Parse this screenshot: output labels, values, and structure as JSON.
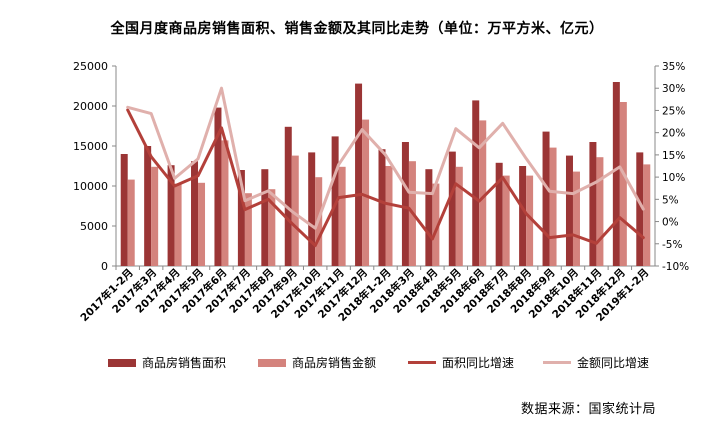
{
  "chart_data": {
    "type": "bar+line",
    "title": "全国月度商品房销售面积、销售金额及其同比走势（单位：万平方米、亿元）",
    "categories": [
      "2017年1-2月",
      "2017年3月",
      "2017年4月",
      "2017年5月",
      "2017年6月",
      "2017年7月",
      "2017年8月",
      "2017年9月",
      "2017年10月",
      "2017年11月",
      "2017年12月",
      "2018年1-2月",
      "2018年3月",
      "2018年4月",
      "2018年5月",
      "2018年6月",
      "2018年7月",
      "2018年8月",
      "2018年9月",
      "2018年10月",
      "2018年11月",
      "2018年12月",
      "2019年1-2月"
    ],
    "left_axis": {
      "min": 0,
      "max": 25000,
      "ticks": [
        "0",
        "5000",
        "10000",
        "15000",
        "20000",
        "25000"
      ]
    },
    "right_axis": {
      "min": -10,
      "max": 35,
      "ticks": [
        "-10%",
        "-5%",
        "0%",
        "5%",
        "10%",
        "15%",
        "20%",
        "25%",
        "30%",
        "35%"
      ]
    },
    "series": [
      {
        "name": "商品房销售面积",
        "kind": "bar",
        "axis": "left",
        "color": "#9b3535",
        "values": [
          14000,
          15000,
          12600,
          13100,
          19800,
          12000,
          12100,
          17400,
          14200,
          16200,
          22800,
          14600,
          15500,
          12100,
          14300,
          20700,
          12900,
          12500,
          16800,
          13800,
          15500,
          23000,
          14200
        ]
      },
      {
        "name": "商品房销售金额",
        "kind": "bar",
        "axis": "left",
        "color": "#d4837d",
        "values": [
          10800,
          12400,
          10300,
          10400,
          15700,
          9100,
          9600,
          13800,
          11100,
          12400,
          18300,
          12500,
          13100,
          10300,
          12400,
          18200,
          11300,
          11300,
          14800,
          11800,
          13600,
          20500,
          12700
        ]
      },
      {
        "name": "面积同比增速",
        "kind": "line",
        "axis": "right",
        "color": "#b3403a",
        "values": [
          25.1,
          14.6,
          8.0,
          10.3,
          21.1,
          2.7,
          5.0,
          -0.4,
          -5.4,
          5.4,
          6.1,
          4.1,
          3.0,
          -3.9,
          8.5,
          4.6,
          9.9,
          1.8,
          -3.6,
          -3.0,
          -4.9,
          0.9,
          -3.6
        ]
      },
      {
        "name": "金额同比增速",
        "kind": "line",
        "axis": "right",
        "color": "#e0b0ac",
        "values": [
          25.7,
          24.3,
          9.7,
          14.1,
          30.0,
          4.7,
          6.9,
          2.3,
          -1.5,
          12.8,
          20.7,
          15.0,
          6.6,
          6.3,
          20.9,
          16.6,
          22.1,
          14.2,
          6.8,
          6.3,
          8.9,
          12.3,
          2.8
        ]
      }
    ]
  },
  "legend": {
    "area": "商品房销售面积",
    "amount": "商品房销售金额",
    "area_growth": "面积同比增速",
    "amount_growth": "金额同比增速"
  },
  "footer": {
    "source": "数据来源：国家统计局"
  }
}
